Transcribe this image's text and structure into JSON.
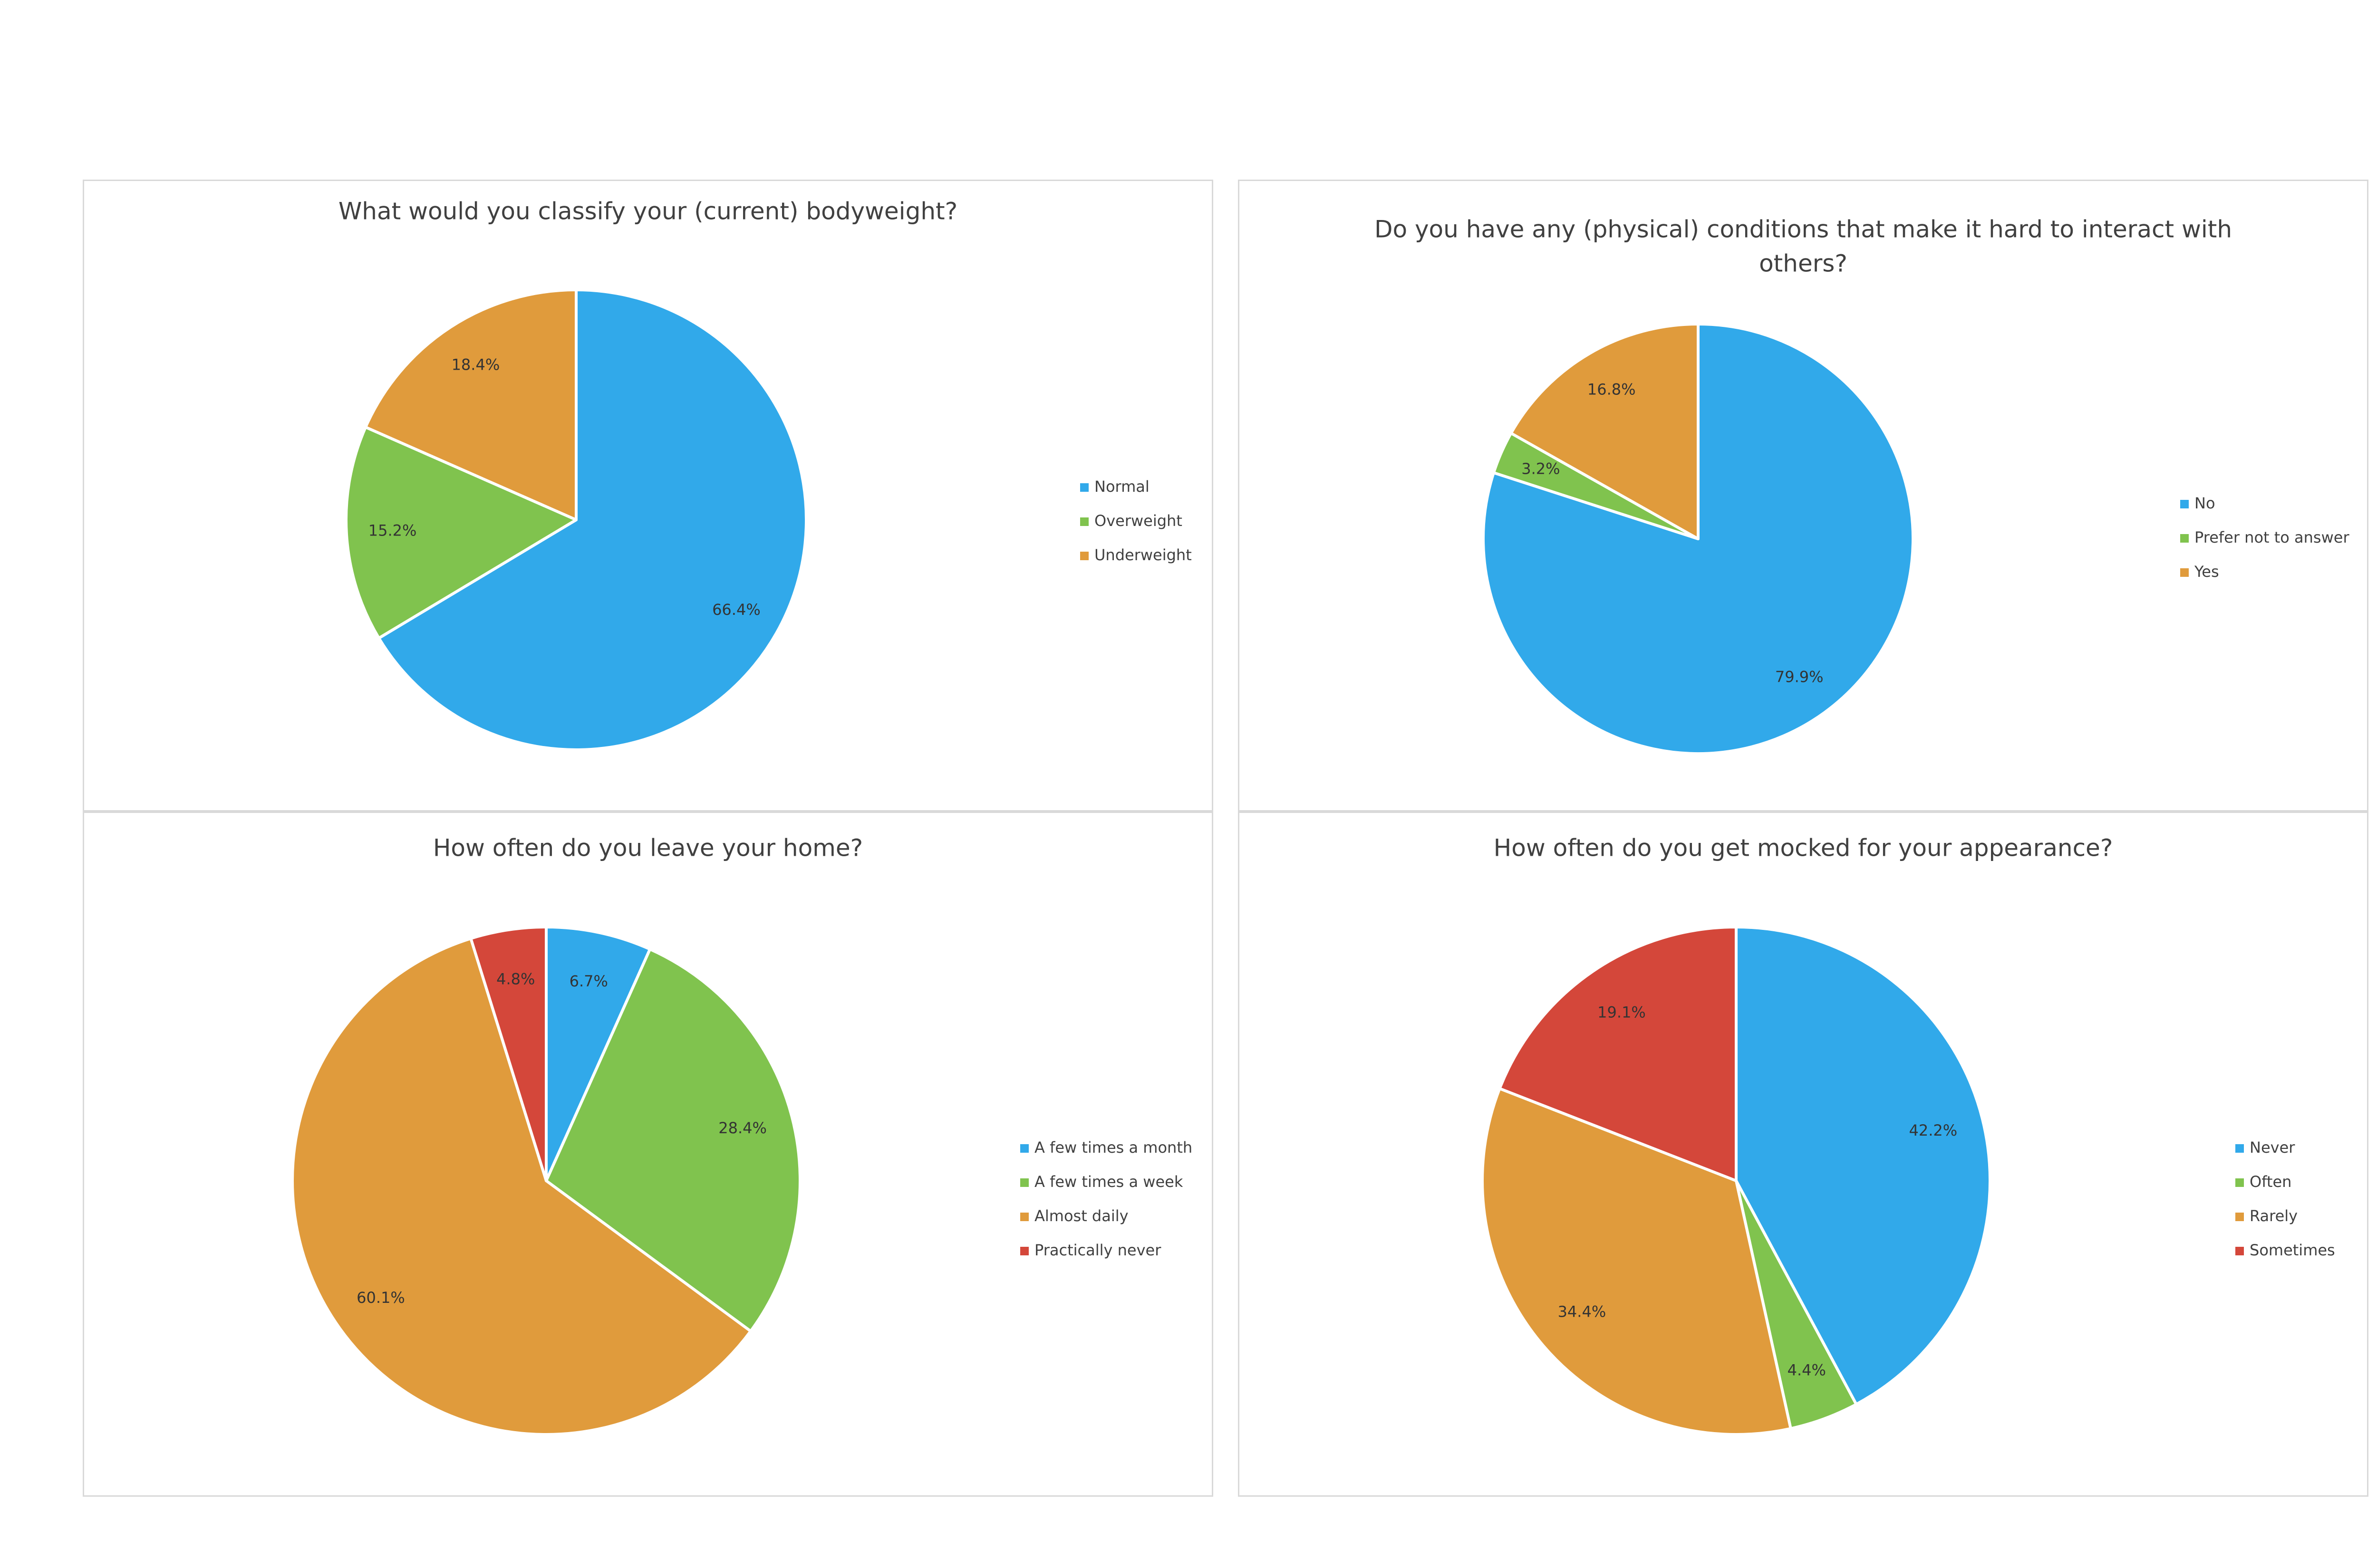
{
  "chart_data": [
    {
      "type": "pie",
      "title": "What would you classify your (current) bodyweight?",
      "title_lines": [
        "What would you classify your (current) bodyweight?"
      ],
      "categories": [
        "Normal",
        "Overweight",
        "Underweight"
      ],
      "values": [
        66.4,
        15.2,
        18.4
      ],
      "labels": [
        "66.4%",
        "15.2%",
        "18.4%"
      ],
      "colors": [
        "#31a9ea",
        "#80c34e",
        "#e09b3c"
      ],
      "legend_position": "right"
    },
    {
      "type": "pie",
      "title": "Do you have any (physical) conditions that make it hard to interact with others?",
      "title_lines": [
        "Do you have any (physical) conditions that make it hard to interact with",
        "others?"
      ],
      "categories": [
        "No",
        "Prefer not to answer",
        "Yes"
      ],
      "values": [
        79.9,
        3.2,
        16.8
      ],
      "labels": [
        "79.9%",
        "3.2%",
        "16.8%"
      ],
      "colors": [
        "#31a9ea",
        "#80c34e",
        "#e09b3c"
      ],
      "legend_position": "right"
    },
    {
      "type": "pie",
      "title": "How often do you leave your home?",
      "title_lines": [
        "How often do you leave your home?"
      ],
      "categories": [
        "A few times a month",
        "A few times a week",
        "Almost daily",
        "Practically never"
      ],
      "values": [
        6.7,
        28.4,
        60.1,
        4.8
      ],
      "labels": [
        "6.7%",
        "28.4%",
        "60.1%",
        "4.8%"
      ],
      "colors": [
        "#31a9ea",
        "#80c34e",
        "#e09b3c",
        "#d4473a"
      ],
      "legend_position": "right"
    },
    {
      "type": "pie",
      "title": "How often do you get mocked for your appearance?",
      "title_lines": [
        "How often do you get mocked for your appearance?"
      ],
      "categories": [
        "Never",
        "Often",
        "Rarely",
        "Sometimes"
      ],
      "values": [
        42.2,
        4.4,
        34.4,
        19.1
      ],
      "labels": [
        "42.2%",
        "4.4%",
        "34.4%",
        "19.1%"
      ],
      "colors": [
        "#31a9ea",
        "#80c34e",
        "#e09b3c",
        "#d4473a"
      ],
      "legend_position": "right"
    }
  ]
}
